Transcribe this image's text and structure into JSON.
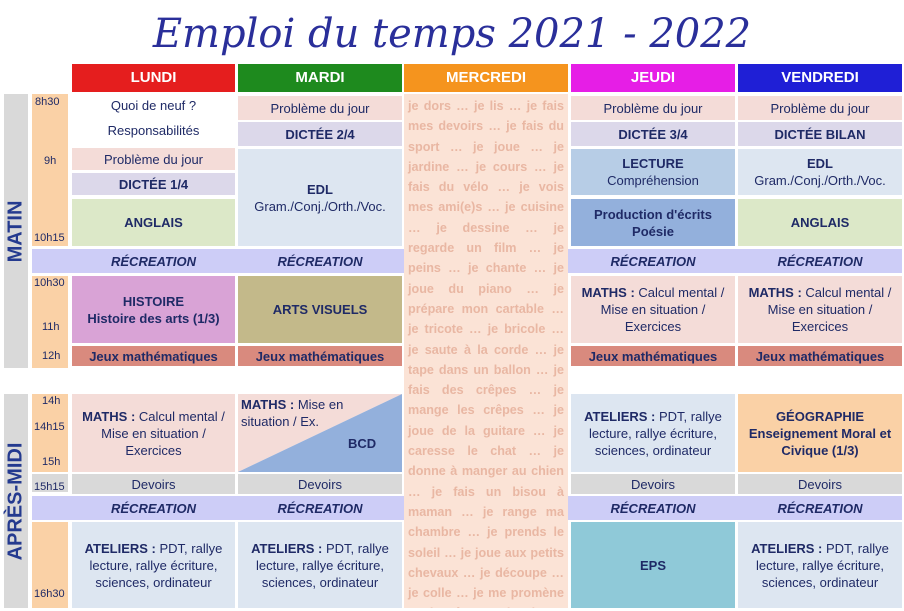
{
  "title": "Emploi du temps 2021 - 2022",
  "days": {
    "lundi": "LUNDI",
    "mardi": "MARDI",
    "mercredi": "MERCREDI",
    "jeudi": "JEUDI",
    "vendredi": "VENDREDI"
  },
  "colors": {
    "lundi": "#e51e1e",
    "mardi": "#1e8a1e",
    "mercredi": "#f5941e",
    "jeudi": "#e61ee6",
    "vendredi": "#1f1fd6"
  },
  "sides": {
    "matin": "MATIN",
    "apres_midi": "APRÈS-MIDI"
  },
  "times": {
    "t0830": "8h30",
    "t9": "9h",
    "t1015": "10h15",
    "t1030": "10h30",
    "t11": "11h",
    "t12": "12h",
    "t14": "14h",
    "t1415": "14h15",
    "t15": "15h",
    "t1515": "15h15",
    "t1630": "16h30"
  },
  "morning": {
    "lundi_quoi": "Quoi de neuf ?",
    "lundi_resp": "Responsabilités",
    "pb": "Problème du jour",
    "dictee1": "DICTÉE 1/4",
    "dictee2": "DICTÉE 2/4",
    "dictee3": "DICTÉE 3/4",
    "dictee_bilan": "DICTÉE BILAN",
    "anglais": "ANGLAIS",
    "edl": "EDL",
    "edl_sub": "Gram./Conj./Orth./Voc.",
    "lecture": "LECTURE",
    "lecture_sub": "Compréhension",
    "production": "Production d'écrits",
    "poesie": "Poésie",
    "recreation": "RÉCREATION",
    "histoire": "HISTOIRE",
    "histoire_sub": "Histoire des arts (1/3)",
    "arts": "ARTS VISUELS",
    "maths_label": "MATHS :",
    "maths_rest": " Calcul mental / Mise en situation / Exercices",
    "jeux": "Jeux mathématiques"
  },
  "afternoon": {
    "maths_label": "MATHS :",
    "maths_lundi_rest": " Calcul mental / Mise en situation / Exercices",
    "maths_mardi_rest": " Mise en situation / Ex.",
    "bcd": "BCD",
    "ateliers_label": "ATELIERS :",
    "ateliers_rest": " PDT, rallye lecture, rallye écriture, sciences, ordinateur",
    "geo1": "GÉOGRAPHIE",
    "geo2": "Enseignement Moral et Civique (1/3)",
    "devoirs": "Devoirs",
    "recreation": "RÉCREATION",
    "eps": "EPS"
  },
  "mercredi_text": "je dors … je lis … je fais mes devoirs … je fais du sport … je joue … je jardine … je cours … je fais du vélo … je vois mes ami(e)s … je cuisine … je dessine … je regarde un film … je peins … je chante … je joue du piano … je prépare mon cartable … je tricote … je bricole … je saute à la corde … je tape dans un ballon … je fais des crêpes … je mange les crêpes … je joue de la guitare … je caresse le chat … je donne à manger au chien … je fais un bisou à maman … je range ma chambre … je prends le soleil … je joue aux petits chevaux … je découpe … je colle … je me promène … je rêve … je ris … j'écris …"
}
